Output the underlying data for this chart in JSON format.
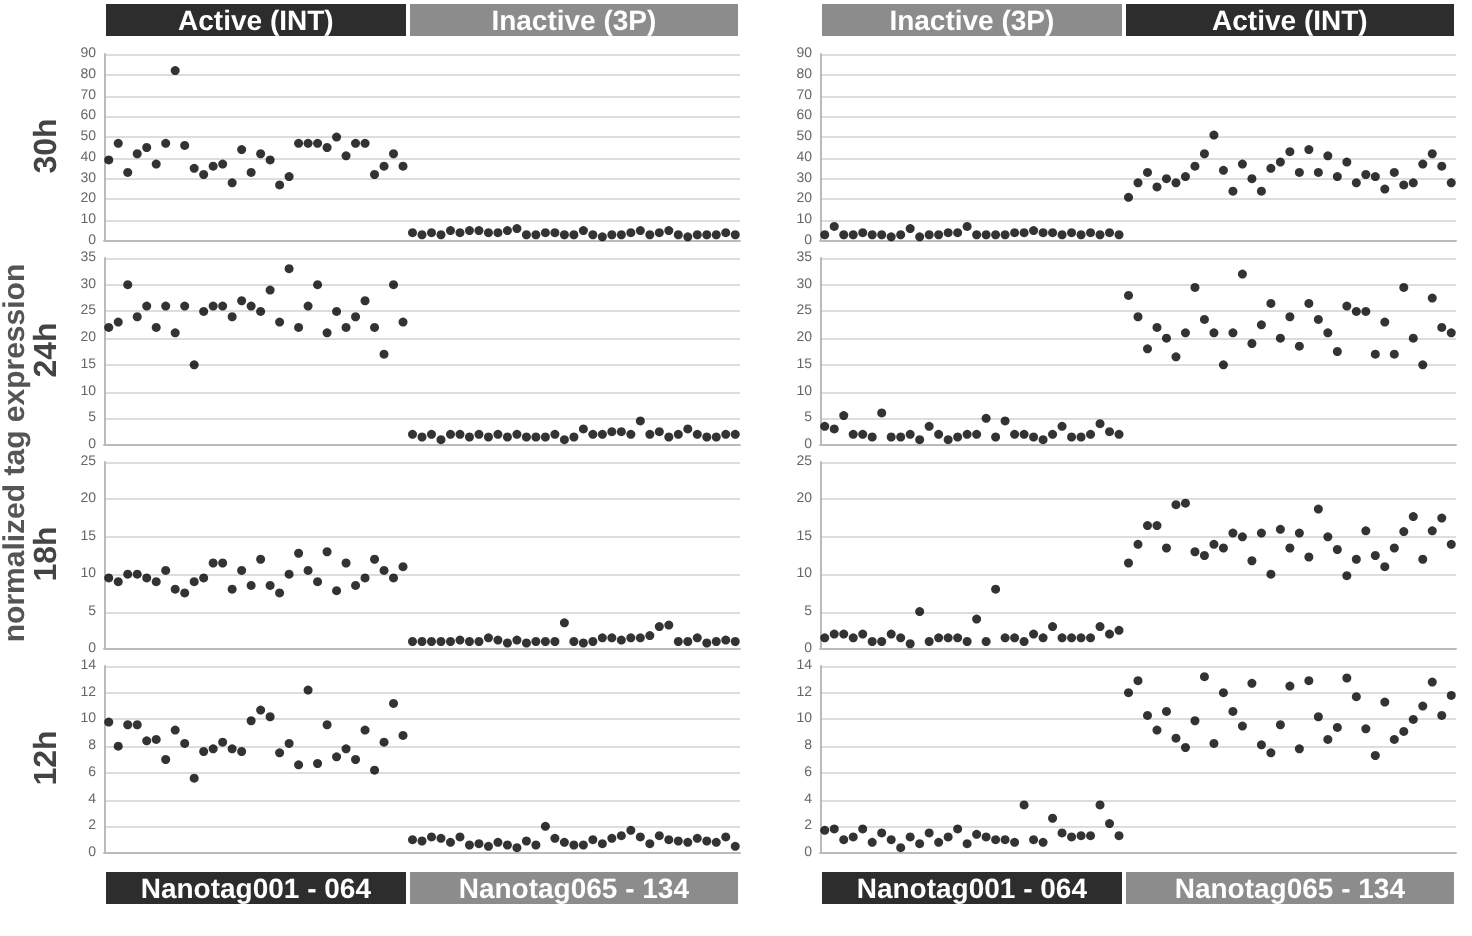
{
  "chart_data": [
    {
      "type": "scatter",
      "title": "30h",
      "ylabel": "normalized tag expression",
      "annotations": [
        "Active (INT)",
        "Inactive (3P)"
      ],
      "categories": [
        null,
        null,
        null,
        null,
        null,
        null,
        null,
        null,
        null,
        null,
        null,
        null,
        null,
        null,
        null,
        null,
        null,
        null,
        null,
        null,
        null,
        null,
        null,
        null,
        null,
        null,
        null,
        null,
        null,
        null,
        null,
        null,
        null,
        null,
        null,
        null,
        null,
        null,
        null,
        null,
        null,
        null,
        null,
        null,
        null,
        null,
        null,
        null,
        null,
        null,
        null,
        null,
        null,
        null,
        null,
        null,
        null,
        null,
        null,
        null,
        null,
        null,
        null,
        null,
        null,
        null,
        null
      ],
      "ylim": [
        0,
        90
      ],
      "yticks": [
        0,
        10,
        20,
        30,
        40,
        50,
        60,
        70,
        80,
        90
      ],
      "tick_labels": "y",
      "grid": "y",
      "marker": "circle",
      "series": [
        {
          "color": "#000000",
          "values": [
            39,
            47,
            33,
            42,
            45,
            37,
            47,
            82,
            46,
            35,
            32,
            36,
            37,
            28,
            44,
            33,
            42,
            39,
            27,
            31,
            47,
            47,
            47,
            45,
            50,
            41,
            47,
            47,
            32,
            36,
            42,
            36,
            null,
            null,
            null,
            null,
            null,
            null,
            null,
            null,
            null,
            null,
            null,
            null,
            null,
            null,
            null,
            null,
            null,
            null,
            null,
            null,
            null,
            null,
            null,
            null,
            null,
            null,
            null,
            null,
            null,
            null,
            null,
            null,
            null,
            null,
            null
          ]
        },
        {
          "color": "#000000",
          "values": [
            null,
            null,
            null,
            null,
            null,
            null,
            null,
            null,
            null,
            null,
            null,
            null,
            null,
            null,
            null,
            null,
            null,
            null,
            null,
            null,
            null,
            null,
            null,
            null,
            null,
            null,
            null,
            null,
            null,
            null,
            null,
            null,
            4,
            3,
            4,
            3,
            5,
            4,
            5,
            5,
            4,
            4,
            5,
            6,
            3,
            3,
            4,
            4,
            3,
            3,
            5,
            3,
            2,
            3,
            3,
            4,
            5,
            3,
            4,
            5,
            3,
            2,
            3,
            3,
            3,
            4,
            3
          ]
        }
      ]
    },
    {
      "type": "scatter",
      "annotations": [
        "Inactive (3P)",
        "Active (INT)"
      ],
      "categories": [
        null,
        null,
        null,
        null,
        null,
        null,
        null,
        null,
        null,
        null,
        null,
        null,
        null,
        null,
        null,
        null,
        null,
        null,
        null,
        null,
        null,
        null,
        null,
        null,
        null,
        null,
        null,
        null,
        null,
        null,
        null,
        null,
        null,
        null,
        null,
        null,
        null,
        null,
        null,
        null,
        null,
        null,
        null,
        null,
        null,
        null,
        null,
        null,
        null,
        null,
        null,
        null,
        null,
        null,
        null,
        null,
        null,
        null,
        null,
        null,
        null,
        null,
        null,
        null,
        null,
        null,
        null
      ],
      "ylim": [
        0,
        90
      ],
      "yticks": [
        0,
        10,
        20,
        30,
        40,
        50,
        60,
        70,
        80,
        90
      ],
      "tick_labels": "y",
      "grid": "y",
      "marker": "circle",
      "series": [
        {
          "color": "#000000",
          "values": [
            3,
            7,
            3,
            3,
            4,
            3,
            3,
            2,
            3,
            6,
            2,
            3,
            3,
            4,
            4,
            7,
            3,
            3,
            3,
            3,
            4,
            4,
            5,
            4,
            4,
            3,
            4,
            3,
            4,
            3,
            4,
            3,
            null,
            null,
            null,
            null,
            null,
            null,
            null,
            null,
            null,
            null,
            null,
            null,
            null,
            null,
            null,
            null,
            null,
            null,
            null,
            null,
            null,
            null,
            null,
            null,
            null,
            null,
            null,
            null,
            null,
            null,
            null,
            null,
            null,
            null,
            null
          ]
        },
        {
          "color": "#000000",
          "values": [
            null,
            null,
            null,
            null,
            null,
            null,
            null,
            null,
            null,
            null,
            null,
            null,
            null,
            null,
            null,
            null,
            null,
            null,
            null,
            null,
            null,
            null,
            null,
            null,
            null,
            null,
            null,
            null,
            null,
            null,
            null,
            null,
            21,
            28,
            33,
            26,
            30,
            28,
            31,
            36,
            42,
            51,
            34,
            24,
            37,
            30,
            24,
            35,
            38,
            43,
            33,
            44,
            33,
            41,
            31,
            38,
            28,
            32,
            31,
            25,
            33,
            27,
            28,
            37,
            42,
            36,
            28
          ]
        }
      ]
    },
    {
      "type": "scatter",
      "title": "24h",
      "categories": [
        null,
        null,
        null,
        null,
        null,
        null,
        null,
        null,
        null,
        null,
        null,
        null,
        null,
        null,
        null,
        null,
        null,
        null,
        null,
        null,
        null,
        null,
        null,
        null,
        null,
        null,
        null,
        null,
        null,
        null,
        null,
        null,
        null,
        null,
        null,
        null,
        null,
        null,
        null,
        null,
        null,
        null,
        null,
        null,
        null,
        null,
        null,
        null,
        null,
        null,
        null,
        null,
        null,
        null,
        null,
        null,
        null,
        null,
        null,
        null,
        null,
        null,
        null,
        null,
        null,
        null,
        null
      ],
      "ylim": [
        0,
        35
      ],
      "yticks": [
        0,
        5,
        10,
        15,
        20,
        25,
        30,
        35
      ],
      "tick_labels": "y",
      "grid": "y",
      "marker": "circle",
      "series": [
        {
          "color": "#000000",
          "values": [
            22,
            23,
            30,
            24,
            26,
            22,
            26,
            21,
            26,
            15,
            25,
            26,
            26,
            24,
            27,
            26,
            25,
            29,
            23,
            33,
            22,
            26,
            30,
            21,
            25,
            22,
            24,
            27,
            22,
            17,
            30,
            23,
            null,
            null,
            null,
            null,
            null,
            null,
            null,
            null,
            null,
            null,
            null,
            null,
            null,
            null,
            null,
            null,
            null,
            null,
            null,
            null,
            null,
            null,
            null,
            null,
            null,
            null,
            null,
            null,
            null,
            null,
            null,
            null,
            null,
            null,
            null
          ]
        },
        {
          "color": "#000000",
          "values": [
            null,
            null,
            null,
            null,
            null,
            null,
            null,
            null,
            null,
            null,
            null,
            null,
            null,
            null,
            null,
            null,
            null,
            null,
            null,
            null,
            null,
            null,
            null,
            null,
            null,
            null,
            null,
            null,
            null,
            null,
            null,
            null,
            2,
            1.5,
            2,
            1,
            2,
            2,
            1.5,
            2,
            1.5,
            2,
            1.5,
            2,
            1.5,
            1.5,
            1.5,
            2,
            1,
            1.5,
            3,
            2,
            2,
            2.5,
            2.5,
            2,
            4.5,
            2,
            2.5,
            1.5,
            2,
            3,
            2,
            1.5,
            1.5,
            2,
            2
          ]
        }
      ]
    },
    {
      "type": "scatter",
      "categories": [
        null,
        null,
        null,
        null,
        null,
        null,
        null,
        null,
        null,
        null,
        null,
        null,
        null,
        null,
        null,
        null,
        null,
        null,
        null,
        null,
        null,
        null,
        null,
        null,
        null,
        null,
        null,
        null,
        null,
        null,
        null,
        null,
        null,
        null,
        null,
        null,
        null,
        null,
        null,
        null,
        null,
        null,
        null,
        null,
        null,
        null,
        null,
        null,
        null,
        null,
        null,
        null,
        null,
        null,
        null,
        null,
        null,
        null,
        null,
        null,
        null,
        null,
        null,
        null,
        null,
        null,
        null
      ],
      "ylim": [
        0,
        35
      ],
      "yticks": [
        0,
        5,
        10,
        15,
        20,
        25,
        30,
        35
      ],
      "tick_labels": "y",
      "grid": "y",
      "marker": "circle",
      "series": [
        {
          "color": "#000000",
          "values": [
            3.5,
            3,
            5.5,
            2,
            2,
            1.5,
            6,
            1.5,
            1.5,
            2,
            1,
            3.5,
            2,
            1,
            1.5,
            2,
            2,
            5,
            1.5,
            4.5,
            2,
            2,
            1.5,
            1,
            2,
            3.5,
            1.5,
            1.5,
            2,
            4,
            2.5,
            2,
            null,
            null,
            null,
            null,
            null,
            null,
            null,
            null,
            null,
            null,
            null,
            null,
            null,
            null,
            null,
            null,
            null,
            null,
            null,
            null,
            null,
            null,
            null,
            null,
            null,
            null,
            null,
            null,
            null,
            null,
            null,
            null,
            null,
            null,
            null
          ]
        },
        {
          "color": "#000000",
          "values": [
            null,
            null,
            null,
            null,
            null,
            null,
            null,
            null,
            null,
            null,
            null,
            null,
            null,
            null,
            null,
            null,
            null,
            null,
            null,
            null,
            null,
            null,
            null,
            null,
            null,
            null,
            null,
            null,
            null,
            null,
            null,
            null,
            28,
            24,
            18,
            22,
            20,
            16.5,
            21,
            29.5,
            23.5,
            21,
            15,
            21,
            32,
            19,
            22.5,
            26.5,
            20,
            24,
            18.5,
            26.5,
            23.5,
            21,
            17.5,
            26,
            25,
            25,
            17,
            23,
            17,
            29.5,
            20,
            15,
            27.5,
            22,
            21
          ]
        }
      ]
    },
    {
      "type": "scatter",
      "title": "18h",
      "categories": [
        null,
        null,
        null,
        null,
        null,
        null,
        null,
        null,
        null,
        null,
        null,
        null,
        null,
        null,
        null,
        null,
        null,
        null,
        null,
        null,
        null,
        null,
        null,
        null,
        null,
        null,
        null,
        null,
        null,
        null,
        null,
        null,
        null,
        null,
        null,
        null,
        null,
        null,
        null,
        null,
        null,
        null,
        null,
        null,
        null,
        null,
        null,
        null,
        null,
        null,
        null,
        null,
        null,
        null,
        null,
        null,
        null,
        null,
        null,
        null,
        null,
        null,
        null,
        null,
        null,
        null,
        null
      ],
      "ylim": [
        0,
        25
      ],
      "yticks": [
        0,
        5,
        10,
        15,
        20,
        25
      ],
      "tick_labels": "y",
      "grid": "y",
      "marker": "circle",
      "series": [
        {
          "color": "#000000",
          "values": [
            9.5,
            9,
            10,
            10,
            9.5,
            9,
            10.5,
            8,
            7.5,
            9,
            9.5,
            11.5,
            11.5,
            8,
            10.5,
            8.5,
            12,
            8.5,
            7.5,
            10,
            12.8,
            10.5,
            9,
            13,
            7.8,
            11.5,
            8.5,
            9.5,
            12,
            10.5,
            9.5,
            11,
            null,
            null,
            null,
            null,
            null,
            null,
            null,
            null,
            null,
            null,
            null,
            null,
            null,
            null,
            null,
            null,
            null,
            null,
            null,
            null,
            null,
            null,
            null,
            null,
            null,
            null,
            null,
            null,
            null,
            null,
            null,
            null,
            null,
            null,
            null
          ]
        },
        {
          "color": "#000000",
          "values": [
            null,
            null,
            null,
            null,
            null,
            null,
            null,
            null,
            null,
            null,
            null,
            null,
            null,
            null,
            null,
            null,
            null,
            null,
            null,
            null,
            null,
            null,
            null,
            null,
            null,
            null,
            null,
            null,
            null,
            null,
            null,
            null,
            1,
            1,
            1,
            1,
            1,
            1.2,
            1,
            1,
            1.5,
            1.2,
            0.8,
            1.2,
            0.8,
            1,
            1,
            1,
            3.5,
            1,
            0.8,
            1,
            1.5,
            1.5,
            1.2,
            1.5,
            1.5,
            1.8,
            3,
            3.2,
            1,
            1,
            1.5,
            0.8,
            1,
            1.2,
            1
          ]
        }
      ]
    },
    {
      "type": "scatter",
      "categories": [
        null,
        null,
        null,
        null,
        null,
        null,
        null,
        null,
        null,
        null,
        null,
        null,
        null,
        null,
        null,
        null,
        null,
        null,
        null,
        null,
        null,
        null,
        null,
        null,
        null,
        null,
        null,
        null,
        null,
        null,
        null,
        null,
        null,
        null,
        null,
        null,
        null,
        null,
        null,
        null,
        null,
        null,
        null,
        null,
        null,
        null,
        null,
        null,
        null,
        null,
        null,
        null,
        null,
        null,
        null,
        null,
        null,
        null,
        null,
        null,
        null,
        null,
        null,
        null,
        null,
        null,
        null
      ],
      "ylim": [
        0,
        25
      ],
      "yticks": [
        0,
        5,
        10,
        15,
        20,
        25
      ],
      "tick_labels": "y",
      "grid": "y",
      "marker": "circle",
      "series": [
        {
          "color": "#000000",
          "values": [
            1.5,
            2,
            2,
            1.5,
            2,
            1,
            1,
            2,
            1.5,
            0.7,
            5,
            1,
            1.5,
            1.5,
            1.5,
            1,
            4,
            1,
            8,
            1.5,
            1.5,
            1,
            2,
            1.5,
            3,
            1.5,
            1.5,
            1.5,
            1.5,
            3,
            2,
            2.5,
            null,
            null,
            null,
            null,
            null,
            null,
            null,
            null,
            null,
            null,
            null,
            null,
            null,
            null,
            null,
            null,
            null,
            null,
            null,
            null,
            null,
            null,
            null,
            null,
            null,
            null,
            null,
            null,
            null,
            null,
            null,
            null,
            null,
            null,
            null
          ]
        },
        {
          "color": "#000000",
          "values": [
            null,
            null,
            null,
            null,
            null,
            null,
            null,
            null,
            null,
            null,
            null,
            null,
            null,
            null,
            null,
            null,
            null,
            null,
            null,
            null,
            null,
            null,
            null,
            null,
            null,
            null,
            null,
            null,
            null,
            null,
            null,
            null,
            11.5,
            14,
            16.5,
            16.5,
            13.5,
            19.3,
            19.5,
            13,
            12.5,
            14,
            13.5,
            15.5,
            15,
            11.8,
            15.5,
            10,
            16,
            13.5,
            15.5,
            12.3,
            18.7,
            15,
            13.3,
            9.8,
            12,
            15.8,
            12.5,
            11,
            13.5,
            15.7,
            17.7,
            12,
            15.8,
            17.5,
            14
          ]
        }
      ]
    },
    {
      "type": "scatter",
      "title": "12h",
      "annotations": [
        "Nanotag001 - 064",
        "Nanotag065 - 134"
      ],
      "categories": [
        null,
        null,
        null,
        null,
        null,
        null,
        null,
        null,
        null,
        null,
        null,
        null,
        null,
        null,
        null,
        null,
        null,
        null,
        null,
        null,
        null,
        null,
        null,
        null,
        null,
        null,
        null,
        null,
        null,
        null,
        null,
        null,
        null,
        null,
        null,
        null,
        null,
        null,
        null,
        null,
        null,
        null,
        null,
        null,
        null,
        null,
        null,
        null,
        null,
        null,
        null,
        null,
        null,
        null,
        null,
        null,
        null,
        null,
        null,
        null,
        null,
        null,
        null,
        null,
        null,
        null,
        null
      ],
      "ylim": [
        0,
        14
      ],
      "yticks": [
        0,
        2,
        4,
        6,
        8,
        10,
        12,
        14
      ],
      "tick_labels": "y",
      "grid": "y",
      "marker": "circle",
      "series": [
        {
          "color": "#000000",
          "values": [
            9.8,
            8,
            9.6,
            9.6,
            8.4,
            8.5,
            7,
            9.2,
            8.2,
            5.6,
            7.6,
            7.8,
            8.3,
            7.8,
            7.6,
            9.9,
            10.7,
            10.2,
            7.5,
            8.2,
            6.6,
            12.2,
            6.7,
            9.6,
            7.2,
            7.8,
            7,
            9.2,
            6.2,
            8.3,
            11.2,
            8.8,
            null,
            null,
            null,
            null,
            null,
            null,
            null,
            null,
            null,
            null,
            null,
            null,
            null,
            null,
            null,
            null,
            null,
            null,
            null,
            null,
            null,
            null,
            null,
            null,
            null,
            null,
            null,
            null,
            null,
            null,
            null,
            null,
            null,
            null,
            null
          ]
        },
        {
          "color": "#000000",
          "values": [
            null,
            null,
            null,
            null,
            null,
            null,
            null,
            null,
            null,
            null,
            null,
            null,
            null,
            null,
            null,
            null,
            null,
            null,
            null,
            null,
            null,
            null,
            null,
            null,
            null,
            null,
            null,
            null,
            null,
            null,
            null,
            null,
            1,
            0.9,
            1.2,
            1.1,
            0.8,
            1.2,
            0.6,
            0.7,
            0.5,
            0.8,
            0.6,
            0.4,
            0.9,
            0.6,
            2,
            1.1,
            0.8,
            0.6,
            0.6,
            1,
            0.7,
            1.1,
            1.3,
            1.7,
            1.2,
            0.7,
            1.3,
            1,
            0.9,
            0.8,
            1.1,
            0.9,
            0.8,
            1.2,
            0.5
          ]
        }
      ]
    },
    {
      "type": "scatter",
      "annotations": [
        "Nanotag001 - 064",
        "Nanotag065 - 134"
      ],
      "categories": [
        null,
        null,
        null,
        null,
        null,
        null,
        null,
        null,
        null,
        null,
        null,
        null,
        null,
        null,
        null,
        null,
        null,
        null,
        null,
        null,
        null,
        null,
        null,
        null,
        null,
        null,
        null,
        null,
        null,
        null,
        null,
        null,
        null,
        null,
        null,
        null,
        null,
        null,
        null,
        null,
        null,
        null,
        null,
        null,
        null,
        null,
        null,
        null,
        null,
        null,
        null,
        null,
        null,
        null,
        null,
        null,
        null,
        null,
        null,
        null,
        null,
        null,
        null,
        null,
        null,
        null,
        null
      ],
      "ylim": [
        0,
        14
      ],
      "yticks": [
        0,
        2,
        4,
        6,
        8,
        10,
        12,
        14
      ],
      "tick_labels": "y",
      "grid": "y",
      "marker": "circle",
      "series": [
        {
          "color": "#000000",
          "values": [
            1.7,
            1.8,
            1,
            1.2,
            1.8,
            0.8,
            1.5,
            1,
            0.4,
            1.2,
            0.7,
            1.5,
            0.8,
            1.2,
            1.8,
            0.7,
            1.4,
            1.2,
            1,
            1,
            0.8,
            3.6,
            1,
            0.8,
            2.6,
            1.5,
            1.2,
            1.3,
            1.3,
            3.6,
            2.2,
            1.3,
            null,
            null,
            null,
            null,
            null,
            null,
            null,
            null,
            null,
            null,
            null,
            null,
            null,
            null,
            null,
            null,
            null,
            null,
            null,
            null,
            null,
            null,
            null,
            null,
            null,
            null,
            null,
            null,
            null,
            null,
            null,
            null,
            null,
            null,
            null
          ]
        },
        {
          "color": "#000000",
          "values": [
            null,
            null,
            null,
            null,
            null,
            null,
            null,
            null,
            null,
            null,
            null,
            null,
            null,
            null,
            null,
            null,
            null,
            null,
            null,
            null,
            null,
            null,
            null,
            null,
            null,
            null,
            null,
            null,
            null,
            null,
            null,
            null,
            12,
            12.9,
            10.3,
            9.2,
            10.6,
            8.6,
            7.9,
            9.9,
            13.2,
            8.2,
            12,
            10.6,
            9.5,
            12.7,
            8.1,
            7.5,
            9.6,
            12.5,
            7.8,
            12.9,
            10.2,
            8.5,
            9.4,
            13.1,
            11.7,
            9.3,
            7.3,
            11.3,
            8.5,
            9.1,
            10,
            11,
            12.8,
            10.3,
            11.8
          ]
        }
      ]
    }
  ]
}
